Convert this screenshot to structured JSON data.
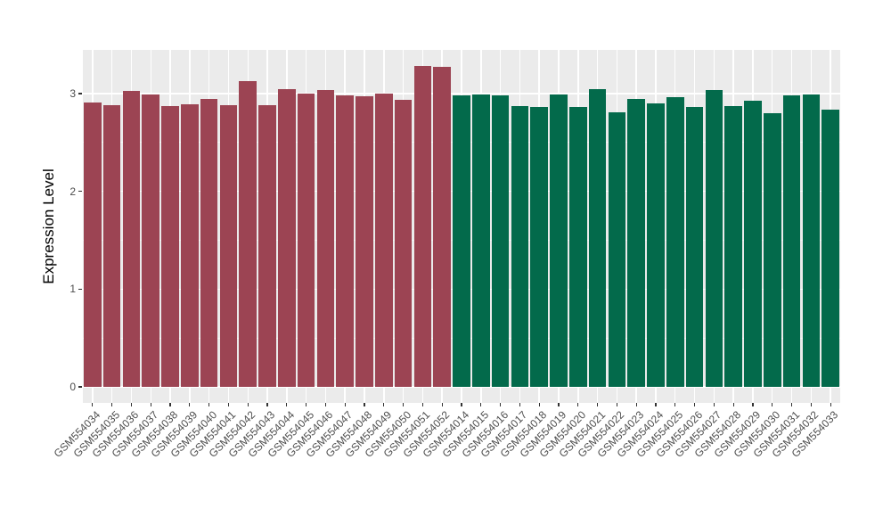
{
  "chart_data": {
    "type": "bar",
    "title": "",
    "xlabel": "",
    "ylabel": "Expression Level",
    "categories": [
      "GSM554034",
      "GSM554035",
      "GSM554036",
      "GSM554037",
      "GSM554038",
      "GSM554039",
      "GSM554040",
      "GSM554041",
      "GSM554042",
      "GSM554043",
      "GSM554044",
      "GSM554045",
      "GSM554046",
      "GSM554047",
      "GSM554048",
      "GSM554049",
      "GSM554050",
      "GSM554051",
      "GSM554052",
      "GSM554014",
      "GSM554015",
      "GSM554016",
      "GSM554017",
      "GSM554018",
      "GSM554019",
      "GSM554020",
      "GSM554021",
      "GSM554022",
      "GSM554023",
      "GSM554024",
      "GSM554025",
      "GSM554026",
      "GSM554027",
      "GSM554028",
      "GSM554029",
      "GSM554030",
      "GSM554031",
      "GSM554032",
      "GSM554033"
    ],
    "values": [
      2.91,
      2.88,
      3.03,
      2.99,
      2.87,
      2.89,
      2.95,
      2.88,
      3.13,
      2.88,
      3.05,
      3.0,
      3.04,
      2.98,
      2.97,
      3.0,
      2.94,
      3.28,
      3.27,
      2.98,
      2.99,
      2.98,
      2.87,
      2.86,
      2.99,
      2.86,
      3.05,
      2.81,
      2.95,
      2.9,
      2.96,
      2.86,
      3.04,
      2.87,
      2.93,
      2.8,
      2.98,
      2.99,
      2.84
    ],
    "bar_groups": [
      "red",
      "red",
      "red",
      "red",
      "red",
      "red",
      "red",
      "red",
      "red",
      "red",
      "red",
      "red",
      "red",
      "red",
      "red",
      "red",
      "red",
      "red",
      "red",
      "green",
      "green",
      "green",
      "green",
      "green",
      "green",
      "green",
      "green",
      "green",
      "green",
      "green",
      "green",
      "green",
      "green",
      "green",
      "green",
      "green",
      "green",
      "green",
      "green"
    ],
    "group_colors": {
      "red": "#9C4453",
      "green": "#036A4B"
    },
    "y_ticks": [
      0,
      1,
      2,
      3
    ],
    "y_minor_ticks": [
      0.5,
      1.5,
      2.5
    ],
    "ylim": [
      -0.164,
      3.447
    ],
    "bar_width_fraction": 0.9,
    "legend": "none",
    "grid": true,
    "panel_bg": "#EBEBEB",
    "grid_color": "#FFFFFF",
    "axis_text_color": "#4D4D4D",
    "tick_color": "#333333"
  }
}
